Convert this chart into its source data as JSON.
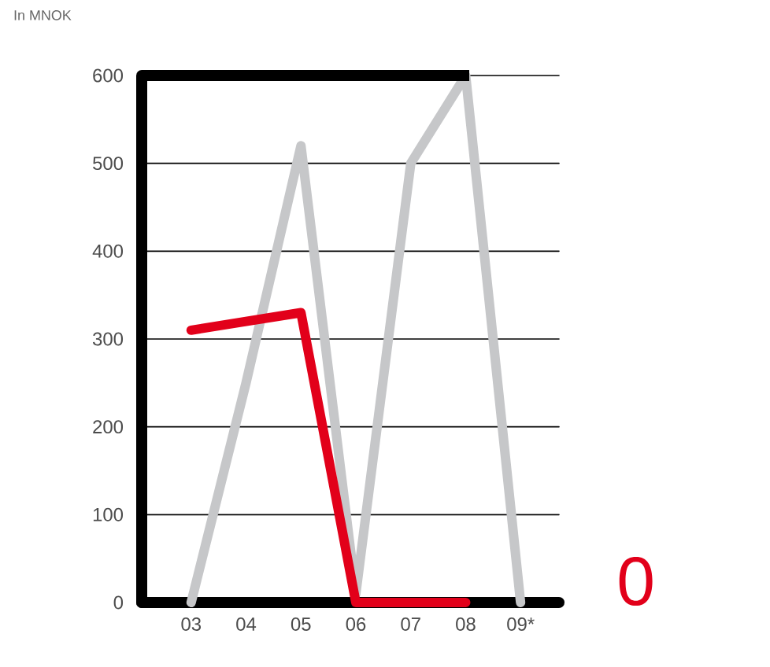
{
  "chart_data": {
    "type": "line",
    "subtitle": "In MNOK",
    "categories": [
      "03",
      "04",
      "05",
      "06",
      "07",
      "08",
      "09*"
    ],
    "series": [
      {
        "color": "#c6c7c9",
        "values": [
          0,
          250,
          520,
          10,
          500,
          600,
          0
        ]
      },
      {
        "color": "#e2001a",
        "values": [
          310,
          320,
          330,
          0,
          0,
          0,
          null
        ]
      }
    ],
    "ylim": [
      0,
      600
    ],
    "yticks": [
      0,
      100,
      200,
      300,
      400,
      500,
      600
    ],
    "grid": "y",
    "marker": "none",
    "line_style": "solid",
    "annotations": [
      "0"
    ]
  }
}
